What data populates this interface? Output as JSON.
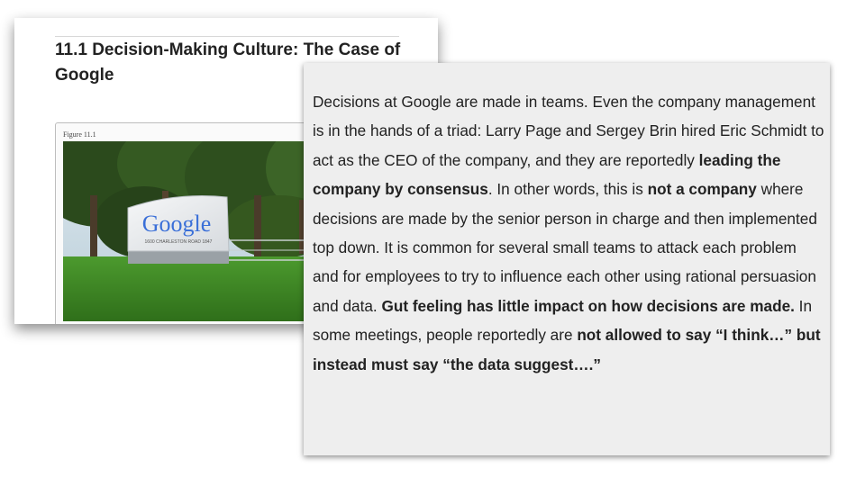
{
  "book_page": {
    "section_title": "11.1 Decision-Making Culture: The Case of Google",
    "figure_label": "Figure 11.1",
    "photo": {
      "sign_logo": "Google",
      "sign_address": "1600 CHARLESTON ROAD   1847",
      "colors": {
        "sky": "#cfdde6",
        "trees": "#2e4a1f",
        "grass": "#3f8a25",
        "sign": "#e9ecef"
      }
    }
  },
  "excerpt": {
    "segments": [
      {
        "text": "Decisions at Google are made in teams. Even the company management is in the hands of a triad: Larry Page and Sergey Brin hired Eric Schmidt to act as the CEO of the company, and they are reportedly ",
        "bold": false
      },
      {
        "text": "leading the company by consensus",
        "bold": true
      },
      {
        "text": ". In other words, this is ",
        "bold": false
      },
      {
        "text": "not a company",
        "bold": true
      },
      {
        "text": " where decisions are made by the senior person in charge and then implemented top down. It is common for several small teams to attack each problem and for employees to try to influence each other using rational persuasion and data. ",
        "bold": false
      },
      {
        "text": "Gut feeling has little impact on how decisions are made.",
        "bold": true
      },
      {
        "text": " In some meetings, people reportedly are ",
        "bold": false
      },
      {
        "text": "not allowed to say “I think…” but instead must say “the data suggest….”",
        "bold": true
      }
    ]
  }
}
